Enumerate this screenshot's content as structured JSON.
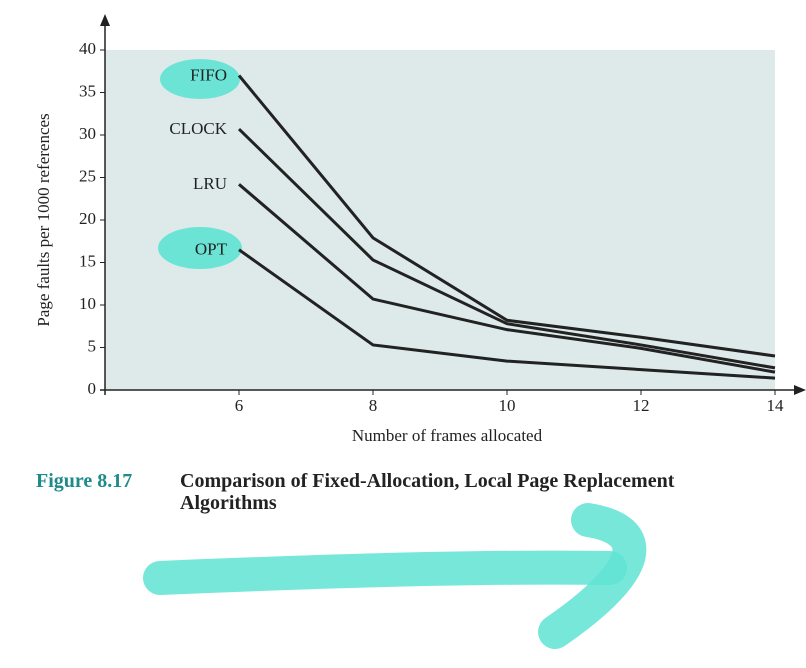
{
  "chart_data": {
    "type": "line",
    "figure_label": "Figure 8.17",
    "title": "Comparison of Fixed-Allocation, Local Page Replacement Algorithms",
    "xlabel": "Number of frames allocated",
    "ylabel": "Page faults per 1000 references",
    "x": [
      6,
      8,
      10,
      12,
      14
    ],
    "series": [
      {
        "name": "FIFO",
        "color": "#222222",
        "values": [
          37,
          17.9,
          8.2,
          6.2,
          4.0
        ]
      },
      {
        "name": "CLOCK",
        "color": "#222222",
        "values": [
          30.7,
          15.3,
          7.8,
          5.3,
          2.6
        ]
      },
      {
        "name": "LRU",
        "color": "#222222",
        "values": [
          24.2,
          10.7,
          7.1,
          4.9,
          2.1
        ]
      },
      {
        "name": "OPT",
        "color": "#222222",
        "values": [
          16.5,
          5.3,
          3.4,
          2.4,
          1.4
        ]
      }
    ],
    "xlim": [
      4,
      14
    ],
    "ylim": [
      0,
      40
    ],
    "xticks": [
      6,
      8,
      10,
      12,
      14
    ],
    "yticks": [
      0,
      5,
      10,
      15,
      20,
      25,
      30,
      35,
      40
    ]
  }
}
